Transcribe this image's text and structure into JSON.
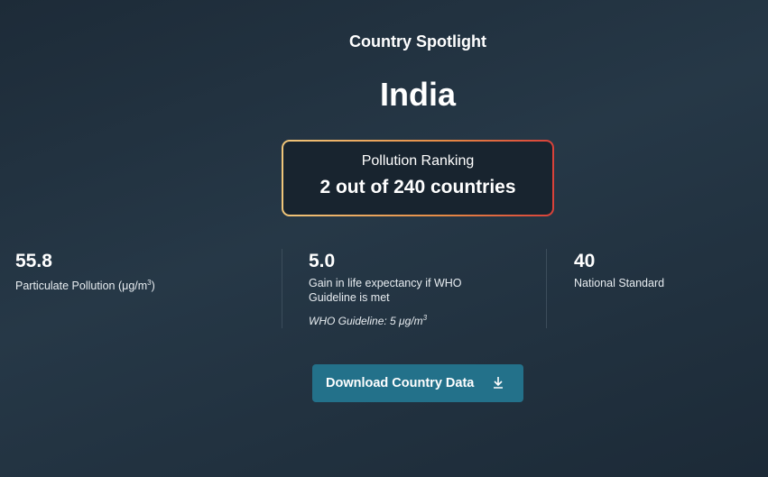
{
  "header": {
    "subtitle": "Country Spotlight",
    "country": "India"
  },
  "ranking": {
    "label": "Pollution Ranking",
    "value": "2 out of 240 countries",
    "gradient_colors": [
      "#f0c67a",
      "#e58a45",
      "#d9413a"
    ]
  },
  "stats": [
    {
      "value": "55.8",
      "label": "Particulate Pollution (μg/m",
      "label_sup": "3",
      "label_end": ")"
    },
    {
      "value": "5.0",
      "label": "Gain in life expectancy if WHO Guideline is met",
      "note": "WHO Guideline: 5 μg/m",
      "note_sup": "3"
    },
    {
      "value": "40",
      "label": "National Standard"
    }
  ],
  "download": {
    "label": "Download Country Data",
    "icon": "download-icon",
    "color": "#23718a"
  }
}
